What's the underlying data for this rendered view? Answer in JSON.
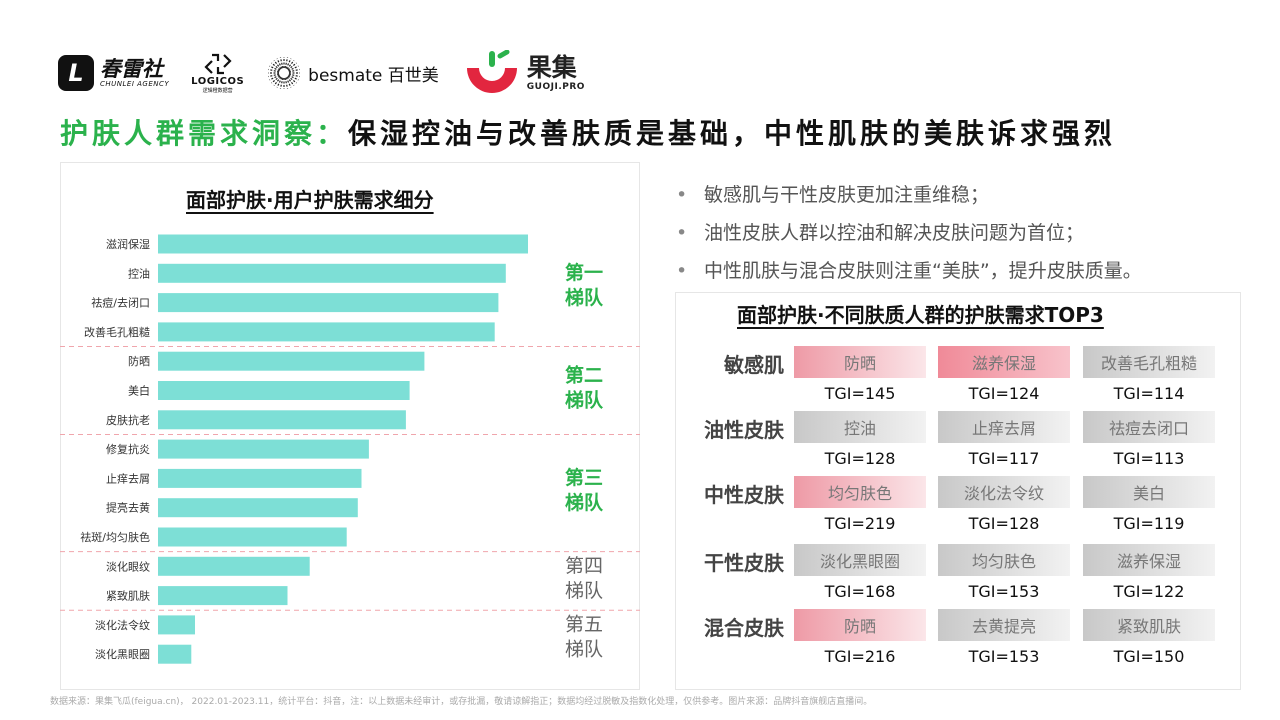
{
  "logos": {
    "chunlei": {
      "mark": "L",
      "cn": "春雷社",
      "en": "CHUNLEI AGENCY"
    },
    "logicos": {
      "en": "LOGICOS",
      "cn": "逻辑橙数据营"
    },
    "besmate": {
      "text": "besmate 百世美"
    },
    "guoji": {
      "cn": "果集",
      "en": "GUOJI.PRO"
    }
  },
  "headline": {
    "green": "护肤人群需求洞察：",
    "black": "保湿控油与改善肤质是基础，中性肌肤的美肤诉求强烈"
  },
  "left_title": "面部护肤·用户护肤需求细分",
  "right_title": "面部护肤·不同肤质人群的护肤需求TOP3",
  "bullets": [
    "敏感肌与干性皮肤更加注重维稳；",
    "油性皮肤人群以控油和解决皮肤问题为首位；",
    "中性肌肤与混合皮肤则注重“美肤”，提升皮肤质量。"
  ],
  "colors": {
    "bar": "#7ddfd6",
    "tier_green": "#2bb24c",
    "tier_gray": "#666666",
    "divider": "#f0a5ac"
  },
  "chart_data": {
    "type": "bar",
    "orientation": "horizontal",
    "categories": [
      "滋润保湿",
      "控油",
      "祛痘/去闭口",
      "改善毛孔粗糙",
      "防晒",
      "美白",
      "皮肤抗老",
      "修复抗炎",
      "止痒去屑",
      "提亮去黄",
      "祛斑/均匀肤色",
      "淡化眼纹",
      "紧致肌肤",
      "淡化法令纹",
      "淡化黑眼圈"
    ],
    "values": [
      100,
      94,
      92,
      91,
      72,
      68,
      67,
      57,
      55,
      54,
      51,
      41,
      35,
      10,
      9
    ],
    "xlim": [
      0,
      100
    ],
    "tiers": [
      {
        "label": "第一\n梯队",
        "start": 0,
        "end": 3,
        "highlight": true
      },
      {
        "label": "第二\n梯队",
        "start": 4,
        "end": 6,
        "highlight": true
      },
      {
        "label": "第三\n梯队",
        "start": 7,
        "end": 10,
        "highlight": true
      },
      {
        "label": "第四\n梯队",
        "start": 11,
        "end": 12,
        "highlight": false
      },
      {
        "label": "第五\n梯队",
        "start": 13,
        "end": 14,
        "highlight": false
      }
    ]
  },
  "skin_needs": [
    {
      "skin": "敏感肌",
      "needs": [
        {
          "name": "防晒",
          "tgi": "TGI=145",
          "style": "pink"
        },
        {
          "name": "滋养保湿",
          "tgi": "TGI=124",
          "style": "pink-strong"
        },
        {
          "name": "改善毛孔粗糙",
          "tgi": "TGI=114",
          "style": "gray"
        }
      ]
    },
    {
      "skin": "油性皮肤",
      "needs": [
        {
          "name": "控油",
          "tgi": "TGI=128",
          "style": "gray"
        },
        {
          "name": "止痒去屑",
          "tgi": "TGI=117",
          "style": "gray"
        },
        {
          "name": "祛痘去闭口",
          "tgi": "TGI=113",
          "style": "gray"
        }
      ]
    },
    {
      "skin": "中性皮肤",
      "needs": [
        {
          "name": "均匀肤色",
          "tgi": "TGI=219",
          "style": "pink"
        },
        {
          "name": "淡化法令纹",
          "tgi": "TGI=128",
          "style": "gray"
        },
        {
          "name": "美白",
          "tgi": "TGI=119",
          "style": "gray"
        }
      ]
    },
    {
      "skin": "干性皮肤",
      "needs": [
        {
          "name": "淡化黑眼圈",
          "tgi": "TGI=168",
          "style": "gray"
        },
        {
          "name": "均匀肤色",
          "tgi": "TGI=153",
          "style": "gray"
        },
        {
          "name": "滋养保湿",
          "tgi": "TGI=122",
          "style": "gray"
        }
      ]
    },
    {
      "skin": "混合皮肤",
      "needs": [
        {
          "name": "防晒",
          "tgi": "TGI=216",
          "style": "pink"
        },
        {
          "name": "去黄提亮",
          "tgi": "TGI=153",
          "style": "gray"
        },
        {
          "name": "紧致肌肤",
          "tgi": "TGI=150",
          "style": "gray"
        }
      ]
    }
  ],
  "footnote": "数据来源：果集飞瓜(feigua.cn)， 2022.01-2023.11，统计平台：抖音，注：以上数据未经审计，或存批漏，敬请谅解指正；数据均经过脱敏及指数化处理，仅供参考。图片来源：品牌抖音旗舰店直播间。"
}
